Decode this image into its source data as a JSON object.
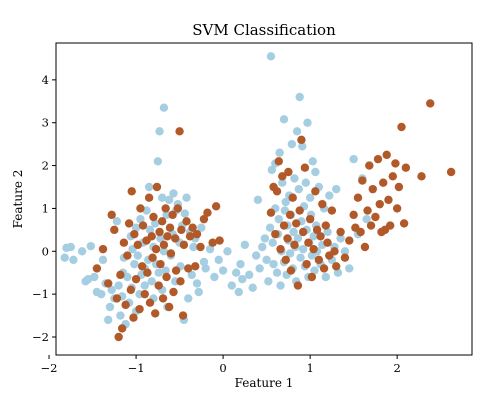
{
  "chart_data": {
    "type": "scatter",
    "title": "SVM Classification",
    "xlabel": "Feature 1",
    "ylabel": "Feature 2",
    "xlim": [
      -1.92,
      2.86
    ],
    "ylim": [
      -2.42,
      4.86
    ],
    "xticks": [
      -2,
      -1,
      0,
      1,
      2
    ],
    "yticks": [
      -2,
      -1,
      0,
      1,
      2,
      3,
      4
    ],
    "grid": false,
    "legend": "none",
    "series": [
      {
        "color": "#a6cee3",
        "points": [
          [
            -1.82,
            -0.15
          ],
          [
            -1.8,
            0.08
          ],
          [
            -1.75,
            0.1
          ],
          [
            -1.72,
            -0.2
          ],
          [
            -1.62,
            0.0
          ],
          [
            -1.58,
            -0.7
          ],
          [
            -1.55,
            -0.65
          ],
          [
            -1.52,
            0.12
          ],
          [
            -1.48,
            -0.6
          ],
          [
            -1.45,
            -0.95
          ],
          [
            -1.4,
            -1.0
          ],
          [
            -1.38,
            -0.2
          ],
          [
            -1.35,
            -0.75
          ],
          [
            -1.32,
            -1.6
          ],
          [
            -1.3,
            -1.3
          ],
          [
            -1.28,
            -0.9
          ],
          [
            -1.25,
            -1.1
          ],
          [
            -1.22,
            0.7
          ],
          [
            -1.2,
            -0.8
          ],
          [
            -1.18,
            -1.5
          ],
          [
            -1.16,
            -1.05
          ],
          [
            -1.15,
            -0.5
          ],
          [
            -1.14,
            -0.15
          ],
          [
            -1.12,
            -1.7
          ],
          [
            -1.1,
            -0.6
          ],
          [
            -1.08,
            -1.2
          ],
          [
            -1.06,
            0.35
          ],
          [
            -1.05,
            -0.85
          ],
          [
            -1.04,
            0.05
          ],
          [
            -1.02,
            -0.3
          ],
          [
            -1.0,
            -1.4
          ],
          [
            -1.0,
            0.55
          ],
          [
            -0.98,
            -0.1
          ],
          [
            -0.96,
            -1.0
          ],
          [
            -0.95,
            0.75
          ],
          [
            -0.94,
            -0.55
          ],
          [
            -0.92,
            0.2
          ],
          [
            -0.9,
            -0.4
          ],
          [
            -0.9,
            -0.8
          ],
          [
            -0.88,
            0.95
          ],
          [
            -0.86,
            -0.2
          ],
          [
            -0.85,
            1.5
          ],
          [
            -0.84,
            0.5
          ],
          [
            -0.82,
            -0.7
          ],
          [
            -0.8,
            -1.1
          ],
          [
            -0.8,
            0.1
          ],
          [
            -0.78,
            0.65
          ],
          [
            -0.77,
            -0.3
          ],
          [
            -0.75,
            2.1
          ],
          [
            -0.74,
            -0.5
          ],
          [
            -0.73,
            2.8
          ],
          [
            -0.72,
            0.3
          ],
          [
            -0.7,
            -0.9
          ],
          [
            -0.7,
            1.25
          ],
          [
            -0.68,
            0.0
          ],
          [
            -0.68,
            3.35
          ],
          [
            -0.66,
            -0.45
          ],
          [
            -0.65,
            0.85
          ],
          [
            -0.64,
            -1.3
          ],
          [
            -0.62,
            1.2
          ],
          [
            -0.6,
            -0.1
          ],
          [
            -0.58,
            0.4
          ],
          [
            -0.57,
            1.35
          ],
          [
            -0.55,
            -0.7
          ],
          [
            -0.54,
            0.95
          ],
          [
            -0.52,
            1.1
          ],
          [
            -0.5,
            0.2
          ],
          [
            -0.49,
            -0.35
          ],
          [
            -0.47,
            0.6
          ],
          [
            -0.45,
            -1.6
          ],
          [
            -0.44,
            0.88
          ],
          [
            -0.42,
            1.25
          ],
          [
            -0.4,
            -1.1
          ],
          [
            -0.38,
            0.45
          ],
          [
            -0.36,
            -0.55
          ],
          [
            -0.34,
            0.1
          ],
          [
            -0.32,
            0.3
          ],
          [
            -0.3,
            -0.75
          ],
          [
            -0.28,
            -0.95
          ],
          [
            -0.25,
            0.55
          ],
          [
            -0.22,
            -0.25
          ],
          [
            -0.2,
            -0.4
          ],
          [
            -0.15,
            0.05
          ],
          [
            -0.1,
            -0.6
          ],
          [
            -0.05,
            -0.2
          ],
          [
            0.0,
            -0.45
          ],
          [
            0.05,
            0.0
          ],
          [
            0.1,
            -0.8
          ],
          [
            0.15,
            -0.5
          ],
          [
            0.18,
            -0.95
          ],
          [
            0.2,
            -0.3
          ],
          [
            0.22,
            -0.65
          ],
          [
            0.25,
            0.15
          ],
          [
            0.3,
            -0.55
          ],
          [
            0.34,
            -0.85
          ],
          [
            0.38,
            -0.1
          ],
          [
            0.4,
            1.2
          ],
          [
            0.42,
            -0.4
          ],
          [
            0.45,
            0.1
          ],
          [
            0.48,
            0.3
          ],
          [
            0.5,
            -0.2
          ],
          [
            0.52,
            -0.7
          ],
          [
            0.54,
            0.55
          ],
          [
            0.55,
            4.55
          ],
          [
            0.56,
            1.9
          ],
          [
            0.57,
            0.2
          ],
          [
            0.58,
            -0.3
          ],
          [
            0.6,
            2.05
          ],
          [
            0.6,
            1.0
          ],
          [
            0.62,
            -0.5
          ],
          [
            0.63,
            0.4
          ],
          [
            0.64,
            0.75
          ],
          [
            0.65,
            2.3
          ],
          [
            0.66,
            -0.8
          ],
          [
            0.67,
            0.0
          ],
          [
            0.68,
            1.6
          ],
          [
            0.7,
            3.08
          ],
          [
            0.7,
            -0.25
          ],
          [
            0.71,
            0.95
          ],
          [
            0.72,
            1.15
          ],
          [
            0.73,
            -0.55
          ],
          [
            0.74,
            0.6
          ],
          [
            0.75,
            0.25
          ],
          [
            0.76,
            1.3
          ],
          [
            0.77,
            -0.05
          ],
          [
            0.78,
            0.85
          ],
          [
            0.79,
            2.5
          ],
          [
            0.8,
            -0.4
          ],
          [
            0.81,
            0.45
          ],
          [
            0.82,
            1.7
          ],
          [
            0.83,
            0.1
          ],
          [
            0.84,
            -0.7
          ],
          [
            0.85,
            2.8
          ],
          [
            0.86,
            0.3
          ],
          [
            0.87,
            1.45
          ],
          [
            0.88,
            3.6
          ],
          [
            0.89,
            -0.15
          ],
          [
            0.9,
            0.7
          ],
          [
            0.91,
            2.45
          ],
          [
            0.92,
            0.05
          ],
          [
            0.93,
            1.05
          ],
          [
            0.94,
            -0.35
          ],
          [
            0.95,
            1.6
          ],
          [
            0.96,
            0.5
          ],
          [
            0.97,
            3.0
          ],
          [
            0.98,
            -0.6
          ],
          [
            0.99,
            0.2
          ],
          [
            1.0,
            1.25
          ],
          [
            1.01,
            0.85
          ],
          [
            1.02,
            -0.1
          ],
          [
            1.03,
            2.1
          ],
          [
            1.04,
            0.35
          ],
          [
            1.05,
            -0.45
          ],
          [
            1.06,
            1.85
          ],
          [
            1.07,
            0.6
          ],
          [
            1.08,
            0.0
          ],
          [
            1.1,
            1.5
          ],
          [
            1.12,
            -0.3
          ],
          [
            1.14,
            0.15
          ],
          [
            1.16,
            1.0
          ],
          [
            1.18,
            -0.6
          ],
          [
            1.2,
            0.45
          ],
          [
            1.22,
            1.3
          ],
          [
            1.25,
            -0.2
          ],
          [
            1.28,
            0.1
          ],
          [
            1.3,
            1.45
          ],
          [
            1.32,
            -0.5
          ],
          [
            1.35,
            0.3
          ],
          [
            1.4,
            0.0
          ],
          [
            1.45,
            -0.4
          ],
          [
            1.5,
            2.15
          ],
          [
            1.55,
            0.4
          ],
          [
            1.6,
            1.7
          ],
          [
            1.65,
            0.75
          ]
        ]
      },
      {
        "color": "#b15928",
        "points": [
          [
            -1.45,
            -0.4
          ],
          [
            -1.38,
            0.05
          ],
          [
            -1.32,
            -0.75
          ],
          [
            -1.28,
            0.85
          ],
          [
            -1.25,
            0.5
          ],
          [
            -1.22,
            -1.1
          ],
          [
            -1.2,
            -2.0
          ],
          [
            -1.18,
            -0.55
          ],
          [
            -1.16,
            -1.8
          ],
          [
            -1.14,
            0.2
          ],
          [
            -1.12,
            -1.25
          ],
          [
            -1.1,
            -0.1
          ],
          [
            -1.08,
            0.65
          ],
          [
            -1.06,
            -0.9
          ],
          [
            -1.05,
            1.4
          ],
          [
            -1.03,
            -1.55
          ],
          [
            -1.02,
            0.4
          ],
          [
            -1.0,
            -0.65
          ],
          [
            -0.98,
            0.15
          ],
          [
            -0.96,
            -1.35
          ],
          [
            -0.95,
            1.0
          ],
          [
            -0.93,
            -0.35
          ],
          [
            -0.92,
            0.6
          ],
          [
            -0.9,
            -1.0
          ],
          [
            -0.88,
            0.25
          ],
          [
            -0.87,
            -0.5
          ],
          [
            -0.85,
            1.25
          ],
          [
            -0.84,
            -1.2
          ],
          [
            -0.82,
            0.35
          ],
          [
            -0.81,
            -0.15
          ],
          [
            -0.8,
            0.8
          ],
          [
            -0.78,
            -1.45
          ],
          [
            -0.77,
            0.05
          ],
          [
            -0.76,
            1.5
          ],
          [
            -0.74,
            -0.8
          ],
          [
            -0.73,
            0.45
          ],
          [
            -0.72,
            -0.3
          ],
          [
            -0.7,
            0.7
          ],
          [
            -0.69,
            -1.1
          ],
          [
            -0.68,
            0.15
          ],
          [
            -0.66,
            1.0
          ],
          [
            -0.65,
            -0.6
          ],
          [
            -0.64,
            0.35
          ],
          [
            -0.62,
            -1.3
          ],
          [
            -0.61,
            0.55
          ],
          [
            -0.6,
            -0.05
          ],
          [
            -0.58,
            0.85
          ],
          [
            -0.57,
            -0.95
          ],
          [
            -0.55,
            0.3
          ],
          [
            -0.54,
            -0.45
          ],
          [
            -0.52,
            1.0
          ],
          [
            -0.5,
            2.8
          ],
          [
            -0.49,
            -0.7
          ],
          [
            -0.48,
            0.5
          ],
          [
            -0.46,
            -1.5
          ],
          [
            -0.45,
            0.15
          ],
          [
            -0.42,
            0.7
          ],
          [
            -0.4,
            -0.4
          ],
          [
            -0.38,
            0.35
          ],
          [
            -0.35,
            0.55
          ],
          [
            -0.32,
            -0.35
          ],
          [
            -0.3,
            0.4
          ],
          [
            -0.26,
            0.1
          ],
          [
            -0.22,
            0.75
          ],
          [
            -0.18,
            0.9
          ],
          [
            -0.12,
            0.2
          ],
          [
            -0.08,
            1.05
          ],
          [
            -0.04,
            0.25
          ],
          [
            0.55,
            0.9
          ],
          [
            0.58,
            1.5
          ],
          [
            0.6,
            0.4
          ],
          [
            0.62,
            1.4
          ],
          [
            0.64,
            2.1
          ],
          [
            0.66,
            0.05
          ],
          [
            0.68,
            1.75
          ],
          [
            0.7,
            0.6
          ],
          [
            0.72,
            -0.2
          ],
          [
            0.74,
            0.3
          ],
          [
            0.75,
            1.85
          ],
          [
            0.77,
            0.85
          ],
          [
            0.78,
            -0.45
          ],
          [
            0.8,
            1.25
          ],
          [
            0.82,
            0.15
          ],
          [
            0.84,
            0.65
          ],
          [
            0.86,
            -0.8
          ],
          [
            0.88,
            0.95
          ],
          [
            0.9,
            2.6
          ],
          [
            0.92,
            0.45
          ],
          [
            0.94,
            1.95
          ],
          [
            0.96,
            -0.3
          ],
          [
            0.98,
            0.2
          ],
          [
            1.0,
            0.75
          ],
          [
            1.02,
            -0.6
          ],
          [
            1.04,
            0.05
          ],
          [
            1.06,
            1.4
          ],
          [
            1.08,
            0.5
          ],
          [
            1.1,
            -0.2
          ],
          [
            1.12,
            0.35
          ],
          [
            1.14,
            1.1
          ],
          [
            1.16,
            -0.4
          ],
          [
            1.18,
            0.6
          ],
          [
            1.2,
            0.2
          ],
          [
            1.22,
            -0.1
          ],
          [
            1.25,
            0.95
          ],
          [
            1.28,
            0.0
          ],
          [
            1.3,
            -0.35
          ],
          [
            1.35,
            0.45
          ],
          [
            1.4,
            -0.15
          ],
          [
            1.45,
            0.25
          ],
          [
            1.5,
            0.85
          ],
          [
            1.52,
            0.55
          ],
          [
            1.55,
            1.25
          ],
          [
            1.58,
            0.45
          ],
          [
            1.6,
            1.65
          ],
          [
            1.63,
            0.1
          ],
          [
            1.66,
            0.95
          ],
          [
            1.68,
            2.0
          ],
          [
            1.7,
            0.6
          ],
          [
            1.72,
            1.45
          ],
          [
            1.75,
            0.8
          ],
          [
            1.78,
            2.15
          ],
          [
            1.8,
            1.1
          ],
          [
            1.82,
            0.45
          ],
          [
            1.84,
            1.6
          ],
          [
            1.86,
            0.5
          ],
          [
            1.88,
            2.25
          ],
          [
            1.9,
            1.2
          ],
          [
            1.92,
            0.6
          ],
          [
            1.95,
            1.75
          ],
          [
            1.98,
            2.05
          ],
          [
            2.0,
            1.0
          ],
          [
            2.02,
            1.5
          ],
          [
            2.05,
            2.9
          ],
          [
            2.08,
            0.65
          ],
          [
            2.1,
            1.95
          ],
          [
            2.28,
            1.75
          ],
          [
            2.38,
            3.45
          ],
          [
            2.62,
            1.85
          ]
        ]
      }
    ]
  }
}
